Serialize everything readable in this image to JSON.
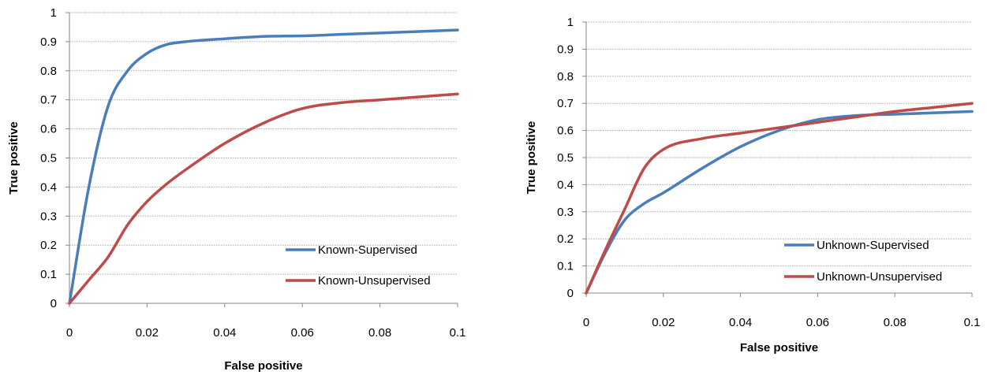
{
  "chart_data": [
    {
      "type": "line",
      "title": "",
      "xlabel": "False positive",
      "ylabel": "True positive",
      "xlim": [
        0,
        0.1
      ],
      "ylim": [
        0,
        1
      ],
      "xticks": [
        "0",
        "0.02",
        "0.04",
        "0.06",
        "0.08",
        "0.1"
      ],
      "yticks": [
        "0",
        "0.1",
        "0.2",
        "0.3",
        "0.4",
        "0.5",
        "0.6",
        "0.7",
        "0.8",
        "0.9",
        "1"
      ],
      "grid": true,
      "legend_position": "bottom-right",
      "series": [
        {
          "name": "Known-Supervised",
          "color": "#4a7ebb",
          "x": [
            0,
            0.005,
            0.01,
            0.015,
            0.02,
            0.025,
            0.03,
            0.04,
            0.05,
            0.06,
            0.07,
            0.08,
            0.09,
            0.1
          ],
          "y": [
            0,
            0.4,
            0.68,
            0.8,
            0.86,
            0.89,
            0.9,
            0.91,
            0.918,
            0.92,
            0.925,
            0.93,
            0.935,
            0.94
          ]
        },
        {
          "name": "Known-Unsupervised",
          "color": "#be4b48",
          "x": [
            0,
            0.005,
            0.01,
            0.015,
            0.02,
            0.025,
            0.03,
            0.04,
            0.05,
            0.06,
            0.07,
            0.08,
            0.09,
            0.1
          ],
          "y": [
            0,
            0.08,
            0.16,
            0.27,
            0.35,
            0.41,
            0.46,
            0.55,
            0.62,
            0.67,
            0.69,
            0.7,
            0.71,
            0.72
          ]
        }
      ]
    },
    {
      "type": "line",
      "title": "",
      "xlabel": "False positive",
      "ylabel": "True positive",
      "xlim": [
        0,
        0.1
      ],
      "ylim": [
        0,
        1
      ],
      "xticks": [
        "0",
        "0.02",
        "0.04",
        "0.06",
        "0.08",
        "0.1"
      ],
      "yticks": [
        "0",
        "0.1",
        "0.2",
        "0.3",
        "0.4",
        "0.5",
        "0.6",
        "0.7",
        "0.8",
        "0.9",
        "1"
      ],
      "grid": true,
      "legend_position": "bottom-right",
      "series": [
        {
          "name": "Unknown-Supervised",
          "color": "#4a7ebb",
          "x": [
            0,
            0.005,
            0.01,
            0.015,
            0.02,
            0.03,
            0.04,
            0.05,
            0.06,
            0.07,
            0.08,
            0.09,
            0.1
          ],
          "y": [
            0,
            0.15,
            0.27,
            0.33,
            0.37,
            0.46,
            0.54,
            0.6,
            0.64,
            0.655,
            0.66,
            0.665,
            0.67
          ]
        },
        {
          "name": "Unknown-Unsupervised",
          "color": "#be4b48",
          "x": [
            0,
            0.005,
            0.01,
            0.015,
            0.02,
            0.03,
            0.04,
            0.05,
            0.06,
            0.07,
            0.08,
            0.09,
            0.1
          ],
          "y": [
            0,
            0.16,
            0.31,
            0.46,
            0.53,
            0.57,
            0.59,
            0.61,
            0.63,
            0.65,
            0.67,
            0.685,
            0.7
          ]
        }
      ]
    }
  ]
}
